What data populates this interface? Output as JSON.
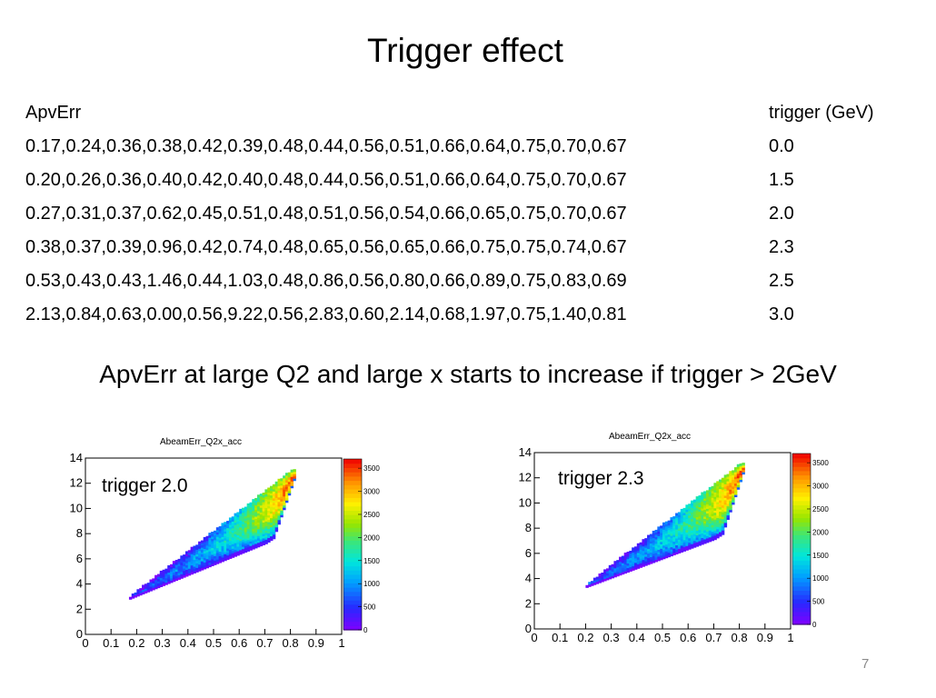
{
  "slide": {
    "title": "Trigger effect",
    "page_number": "7",
    "statement": "ApvErr at large Q2 and large x starts to increase if trigger > 2GeV"
  },
  "table": {
    "header_left": "ApvErr",
    "header_right": "trigger (GeV)",
    "rows": [
      {
        "apverr": "0.17,0.24,0.36,0.38,0.42,0.39,0.48,0.44,0.56,0.51,0.66,0.64,0.75,0.70,0.67",
        "trigger": "0.0"
      },
      {
        "apverr": "0.20,0.26,0.36,0.40,0.42,0.40,0.48,0.44,0.56,0.51,0.66,0.64,0.75,0.70,0.67",
        "trigger": "1.5"
      },
      {
        "apverr": "0.27,0.31,0.37,0.62,0.45,0.51,0.48,0.51,0.56,0.54,0.66,0.65,0.75,0.70,0.67",
        "trigger": "2.0"
      },
      {
        "apverr": "0.38,0.37,0.39,0.96,0.42,0.74,0.48,0.65,0.56,0.65,0.66,0.75,0.75,0.74,0.67",
        "trigger": "2.3"
      },
      {
        "apverr": "0.53,0.43,0.43,1.46,0.44,1.03,0.48,0.86,0.56,0.80,0.66,0.89,0.75,0.83,0.69",
        "trigger": "2.5"
      },
      {
        "apverr": "2.13,0.84,0.63,0.00,0.56,9.22,0.56,2.83,0.60,2.14,0.68,1.97,0.75,1.40,0.81",
        "trigger": "3.0"
      }
    ]
  },
  "chart_data": [
    {
      "type": "heatmap",
      "title": "AbeamErr_Q2x_acc",
      "annotation": "trigger 2.0",
      "xlim": [
        0,
        1
      ],
      "ylim": [
        0,
        14
      ],
      "x_ticks": [
        "0",
        "0.1",
        "0.2",
        "0.3",
        "0.4",
        "0.5",
        "0.6",
        "0.7",
        "0.8",
        "0.9",
        "1"
      ],
      "y_ticks": [
        "0",
        "2",
        "4",
        "6",
        "8",
        "10",
        "12",
        "14"
      ],
      "colorbar_ticks": [
        "0",
        "500",
        "1000",
        "1500",
        "2000",
        "2500",
        "3000",
        "3500"
      ],
      "zlim": [
        0,
        3700
      ],
      "region": {
        "lower_edge": [
          [
            0.17,
            2.8
          ],
          [
            0.7,
            7.2
          ],
          [
            0.73,
            7.6
          ],
          [
            0.82,
            12.8
          ]
        ],
        "upper_edge": [
          [
            0.17,
            2.8
          ],
          [
            0.8,
            12.8
          ]
        ],
        "intensity_peak": [
          0.78,
          12.2
        ]
      }
    },
    {
      "type": "heatmap",
      "title": "AbeamErr_Q2x_acc",
      "annotation": "trigger 2.3",
      "xlim": [
        0,
        1
      ],
      "ylim": [
        0,
        14
      ],
      "x_ticks": [
        "0",
        "0.1",
        "0.2",
        "0.3",
        "0.4",
        "0.5",
        "0.6",
        "0.7",
        "0.8",
        "0.9",
        "1"
      ],
      "y_ticks": [
        "0",
        "2",
        "4",
        "6",
        "8",
        "10",
        "12",
        "14"
      ],
      "colorbar_ticks": [
        "0",
        "500",
        "1000",
        "1500",
        "2000",
        "2500",
        "3000",
        "3500"
      ],
      "zlim": [
        0,
        3700
      ],
      "region": {
        "lower_edge": [
          [
            0.2,
            3.3
          ],
          [
            0.7,
            7.1
          ],
          [
            0.73,
            7.5
          ],
          [
            0.82,
            12.9
          ]
        ],
        "upper_edge": [
          [
            0.2,
            3.3
          ],
          [
            0.8,
            12.9
          ]
        ],
        "intensity_peak": [
          0.78,
          12.2
        ]
      }
    }
  ]
}
